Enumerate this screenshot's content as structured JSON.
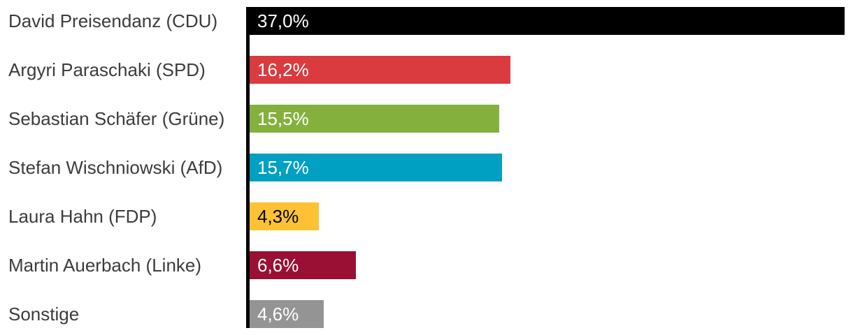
{
  "chart_data": {
    "type": "bar",
    "orientation": "horizontal",
    "title": "",
    "categories": [
      "David Preisendanz (CDU)",
      "Argyri Paraschaki (SPD)",
      "Sebastian Schäfer (Grüne)",
      "Stefan Wischniowski (AfD)",
      "Laura Hahn (FDP)",
      "Martin Auerbach (Linke)",
      "Sonstige"
    ],
    "values": [
      37.0,
      16.2,
      15.5,
      15.7,
      4.3,
      6.6,
      4.6
    ],
    "value_labels": [
      "37,0%",
      "16,2%",
      "15,5%",
      "15,7%",
      "4,3%",
      "6,6%",
      "4,6%"
    ],
    "bar_colors": [
      "#000000",
      "#d93b3f",
      "#84b13e",
      "#00a0c2",
      "#fcc234",
      "#9a0f34",
      "#949494"
    ],
    "value_label_colors": [
      "#ffffff",
      "#ffffff",
      "#ffffff",
      "#ffffff",
      "#000000",
      "#ffffff",
      "#ffffff"
    ],
    "xlim": [
      0,
      37.0
    ],
    "grid": false,
    "legend": false,
    "axis_line_color": "#000000",
    "category_label_color": "#3c3c3c"
  }
}
